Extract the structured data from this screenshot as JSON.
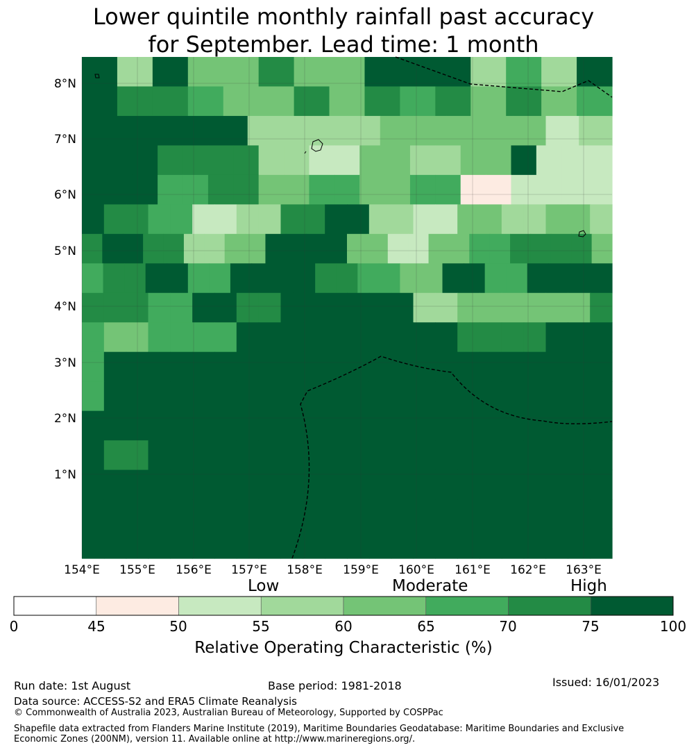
{
  "title": {
    "line1": "Lower quintile monthly rainfall past accuracy",
    "line2": "for September. Lead time: 1 month"
  },
  "map": {
    "lat_labels": [
      "8°N",
      "7°N",
      "6°N",
      "5°N",
      "4°N",
      "3°N",
      "2°N",
      "1°N"
    ],
    "lon_labels": [
      "154°E",
      "155°E",
      "156°E",
      "157°E",
      "158°E",
      "159°E",
      "160°E",
      "161°E",
      "162°E",
      "163°E"
    ],
    "extent": {
      "lon_min": 154.0,
      "lon_max": 163.5,
      "lat_min": 0.0,
      "lat_max": 8.5
    },
    "grid_cell_values": [
      [
        100,
        55,
        75,
        60,
        60,
        70,
        60,
        60,
        100,
        100,
        100,
        55,
        65,
        55,
        100
      ],
      [
        75,
        70,
        70,
        65,
        60,
        60,
        70,
        60,
        70,
        65,
        70,
        60,
        70,
        60,
        65
      ],
      [
        75,
        100,
        100,
        75,
        75,
        55,
        55,
        55,
        55,
        60,
        60,
        60,
        60,
        60,
        50,
        55
      ],
      [
        100,
        100,
        100,
        70,
        70,
        70,
        70,
        55,
        55,
        50,
        50,
        60,
        60,
        55,
        55,
        60,
        60,
        100,
        50,
        50,
        50
      ],
      [
        100,
        100,
        100,
        65,
        65,
        70,
        70,
        60,
        60,
        65,
        65,
        60,
        60,
        65,
        65,
        45,
        45,
        50,
        50,
        50,
        50
      ],
      [
        75,
        70,
        70,
        65,
        65,
        50,
        50,
        55,
        55,
        70,
        70,
        75,
        75,
        55,
        55,
        50,
        50,
        60,
        60,
        55,
        55,
        60,
        60,
        55
      ],
      [
        70,
        75,
        75,
        70,
        70,
        55,
        55,
        60,
        60,
        75,
        75,
        75,
        75,
        60,
        60,
        50,
        50,
        60,
        60,
        65,
        65,
        70,
        70,
        70,
        70,
        60
      ],
      [
        65,
        70,
        70,
        75,
        75,
        65,
        65,
        75,
        75,
        75,
        75,
        70,
        70,
        65,
        65,
        60,
        60,
        75,
        75,
        65,
        65,
        75,
        75,
        75,
        75
      ],
      [
        70,
        70,
        70,
        65,
        65,
        100,
        100,
        70,
        70,
        100,
        100,
        100,
        100,
        75,
        75,
        55,
        55,
        60,
        60,
        60,
        60,
        60,
        60,
        70
      ],
      [
        65,
        60,
        60,
        65,
        65,
        65,
        65,
        100,
        100,
        100,
        100,
        100,
        100,
        100,
        100,
        100,
        100,
        70,
        70,
        70,
        70,
        75,
        75,
        100
      ],
      [
        65,
        75,
        75,
        100,
        100,
        75,
        75,
        100,
        100,
        100,
        100,
        75,
        75,
        100,
        100,
        100,
        100,
        100,
        100,
        100,
        100,
        100,
        100,
        100
      ],
      [
        65,
        100,
        100,
        100,
        100,
        75,
        75,
        100,
        100,
        100,
        100,
        100,
        100,
        100,
        100,
        100,
        100,
        100,
        100,
        100,
        100,
        100,
        100,
        100
      ],
      [
        100,
        100,
        100,
        100,
        100,
        100,
        100,
        100,
        100,
        100,
        100,
        100,
        100,
        100,
        100,
        100,
        100,
        100,
        100,
        100,
        100,
        100,
        100,
        100
      ],
      [
        100,
        70,
        70,
        75,
        75,
        100,
        100,
        100,
        100,
        100,
        100,
        100,
        100,
        100,
        100,
        100,
        100,
        100,
        100,
        100,
        100,
        100,
        100,
        100
      ],
      [
        100,
        75,
        75,
        75,
        75,
        100,
        100,
        100,
        100,
        100,
        100,
        100,
        100,
        75,
        75,
        100,
        100,
        100,
        100,
        100,
        100,
        100,
        100,
        100
      ],
      [
        100,
        100,
        100,
        100,
        100,
        100,
        100,
        100,
        100,
        100,
        100,
        75,
        75,
        100,
        100,
        100,
        100,
        100,
        100,
        100,
        100,
        100,
        100,
        100
      ],
      [
        100,
        100,
        100,
        100,
        100,
        75,
        75,
        100,
        100,
        100,
        100,
        100,
        100,
        100,
        100,
        100,
        100,
        100,
        100,
        100,
        100,
        100,
        100,
        100
      ]
    ]
  },
  "legend": {
    "levels": {
      "low": "Low",
      "moderate": "Moderate",
      "high": "High"
    },
    "ticks": [
      "0",
      "45",
      "50",
      "55",
      "60",
      "65",
      "70",
      "75",
      "100"
    ],
    "bins": [
      0,
      45,
      50,
      55,
      60,
      65,
      70,
      75,
      100
    ],
    "colors": [
      "#ffffff",
      "#fdebe2",
      "#c7e9c0",
      "#a1d99b",
      "#74c476",
      "#41ab5d",
      "#238b45",
      "#005a32"
    ],
    "label": "Relative Operating Characteristic (%)"
  },
  "footer": {
    "run_date": "Run date: 1st August",
    "base_period": "Base period: 1981-2018",
    "issued": "Issued: 16/01/2023",
    "data_source": "Data source: ACCESS-S2 and ERA5 Climate Reanalysis",
    "copyright": "© Commonwealth of Australia 2023, Australian Bureau of Meteorology, Supported by COSPPac",
    "shapefile_note": "Shapefile data extracted from Flanders Marine Institute (2019), Maritime Boundaries Geodatabase: Maritime Boundaries and Exclusive Economic Zones (200NM), version 11. Available online at http://www.marineregions.org/."
  }
}
